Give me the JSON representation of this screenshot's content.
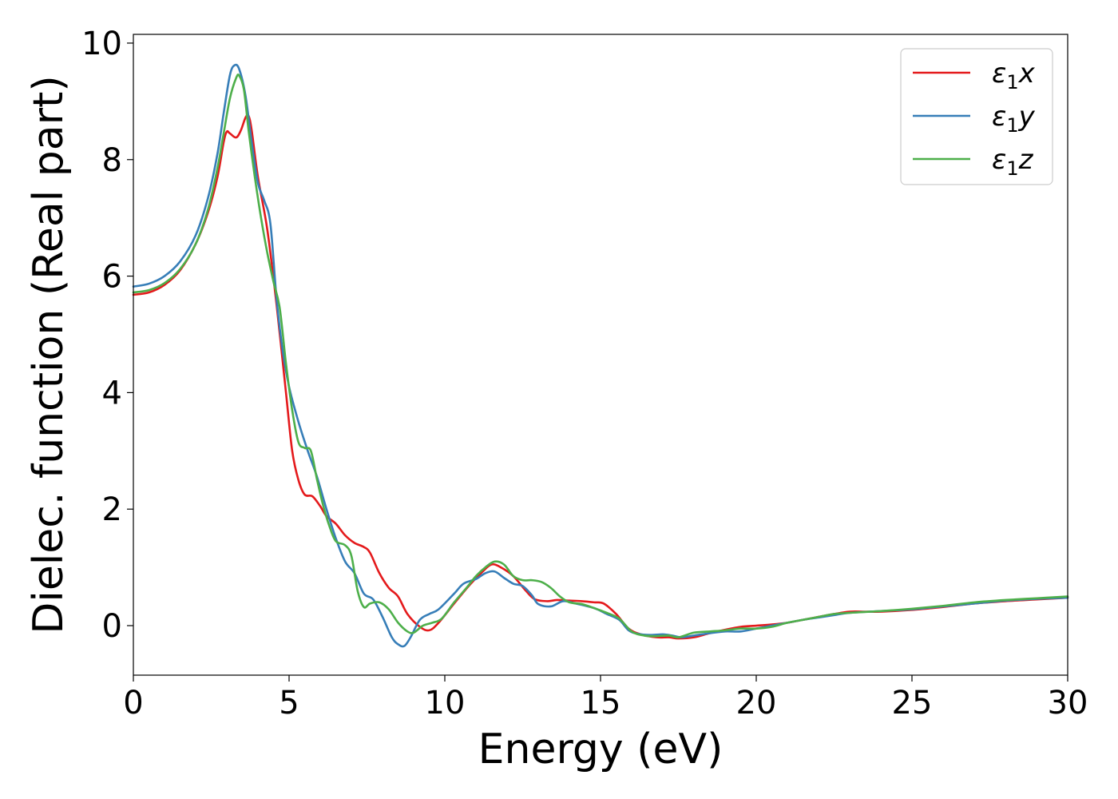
{
  "chart_data": {
    "type": "line",
    "xlabel": "Energy (eV)",
    "ylabel": "Dielec. function (Real part)",
    "xlim": [
      0,
      30
    ],
    "ylim": [
      -0.85,
      10.15
    ],
    "xticks": [
      0,
      5,
      10,
      15,
      20,
      25,
      30
    ],
    "xtick_labels": [
      "0",
      "5",
      "10",
      "15",
      "20",
      "25",
      "30"
    ],
    "yticks": [
      0,
      2,
      4,
      6,
      8,
      10
    ],
    "ytick_labels": [
      "0",
      "2",
      "4",
      "6",
      "8",
      "10"
    ],
    "grid": false,
    "legend_position": "top-right",
    "series": [
      {
        "name": "ε₁x",
        "legend": {
          "symbol": "ε",
          "sub": "1",
          "var": "x"
        },
        "color": "#e41a1c",
        "points": [
          [
            0,
            5.68
          ],
          [
            0.5,
            5.72
          ],
          [
            1.0,
            5.85
          ],
          [
            1.5,
            6.1
          ],
          [
            2.0,
            6.55
          ],
          [
            2.4,
            7.1
          ],
          [
            2.7,
            7.7
          ],
          [
            2.9,
            8.3
          ],
          [
            3.0,
            8.48
          ],
          [
            3.1,
            8.45
          ],
          [
            3.3,
            8.38
          ],
          [
            3.45,
            8.5
          ],
          [
            3.6,
            8.72
          ],
          [
            3.7,
            8.75
          ],
          [
            3.8,
            8.5
          ],
          [
            4.0,
            7.7
          ],
          [
            4.3,
            6.8
          ],
          [
            4.6,
            5.5
          ],
          [
            4.9,
            4.0
          ],
          [
            5.1,
            3.0
          ],
          [
            5.3,
            2.5
          ],
          [
            5.5,
            2.25
          ],
          [
            5.75,
            2.22
          ],
          [
            6.0,
            2.05
          ],
          [
            6.2,
            1.88
          ],
          [
            6.5,
            1.75
          ],
          [
            6.8,
            1.55
          ],
          [
            7.1,
            1.42
          ],
          [
            7.4,
            1.35
          ],
          [
            7.6,
            1.25
          ],
          [
            7.9,
            0.9
          ],
          [
            8.2,
            0.65
          ],
          [
            8.5,
            0.5
          ],
          [
            8.8,
            0.2
          ],
          [
            9.2,
            -0.02
          ],
          [
            9.5,
            -0.08
          ],
          [
            9.8,
            0.05
          ],
          [
            10.3,
            0.38
          ],
          [
            10.8,
            0.7
          ],
          [
            11.2,
            0.92
          ],
          [
            11.5,
            1.05
          ],
          [
            11.8,
            1.0
          ],
          [
            12.2,
            0.85
          ],
          [
            12.6,
            0.6
          ],
          [
            12.9,
            0.45
          ],
          [
            13.3,
            0.42
          ],
          [
            13.6,
            0.44
          ],
          [
            14.0,
            0.43
          ],
          [
            14.4,
            0.42
          ],
          [
            14.8,
            0.4
          ],
          [
            15.1,
            0.38
          ],
          [
            15.5,
            0.2
          ],
          [
            15.9,
            -0.05
          ],
          [
            16.3,
            -0.15
          ],
          [
            16.8,
            -0.2
          ],
          [
            17.2,
            -0.2
          ],
          [
            17.5,
            -0.22
          ],
          [
            18.0,
            -0.2
          ],
          [
            18.5,
            -0.13
          ],
          [
            19.0,
            -0.07
          ],
          [
            19.5,
            -0.02
          ],
          [
            20.0,
            0.0
          ],
          [
            20.5,
            0.02
          ],
          [
            21.0,
            0.05
          ],
          [
            21.5,
            0.1
          ],
          [
            22.0,
            0.15
          ],
          [
            22.5,
            0.2
          ],
          [
            23.0,
            0.24
          ],
          [
            23.5,
            0.24
          ],
          [
            24.0,
            0.24
          ],
          [
            25.0,
            0.27
          ],
          [
            26.0,
            0.32
          ],
          [
            27.0,
            0.38
          ],
          [
            28.0,
            0.42
          ],
          [
            29.0,
            0.45
          ],
          [
            30.0,
            0.48
          ]
        ]
      },
      {
        "name": "ε₁y",
        "legend": {
          "symbol": "ε",
          "sub": "1",
          "var": "y"
        },
        "color": "#377eb8",
        "points": [
          [
            0,
            5.82
          ],
          [
            0.5,
            5.87
          ],
          [
            1.0,
            6.0
          ],
          [
            1.5,
            6.25
          ],
          [
            2.0,
            6.7
          ],
          [
            2.4,
            7.35
          ],
          [
            2.7,
            8.1
          ],
          [
            2.9,
            8.8
          ],
          [
            3.1,
            9.45
          ],
          [
            3.25,
            9.62
          ],
          [
            3.4,
            9.55
          ],
          [
            3.6,
            9.1
          ],
          [
            3.8,
            8.3
          ],
          [
            4.0,
            7.6
          ],
          [
            4.2,
            7.3
          ],
          [
            4.4,
            6.9
          ],
          [
            4.6,
            5.6
          ],
          [
            4.8,
            4.7
          ],
          [
            5.0,
            4.1
          ],
          [
            5.3,
            3.5
          ],
          [
            5.6,
            3.0
          ],
          [
            5.9,
            2.55
          ],
          [
            6.2,
            2.0
          ],
          [
            6.5,
            1.5
          ],
          [
            6.8,
            1.1
          ],
          [
            7.1,
            0.9
          ],
          [
            7.4,
            0.55
          ],
          [
            7.7,
            0.45
          ],
          [
            8.0,
            0.15
          ],
          [
            8.3,
            -0.2
          ],
          [
            8.5,
            -0.32
          ],
          [
            8.7,
            -0.35
          ],
          [
            8.9,
            -0.2
          ],
          [
            9.2,
            0.1
          ],
          [
            9.5,
            0.2
          ],
          [
            9.8,
            0.28
          ],
          [
            10.3,
            0.55
          ],
          [
            10.6,
            0.72
          ],
          [
            11.0,
            0.8
          ],
          [
            11.3,
            0.9
          ],
          [
            11.6,
            0.93
          ],
          [
            11.9,
            0.82
          ],
          [
            12.2,
            0.72
          ],
          [
            12.5,
            0.68
          ],
          [
            12.8,
            0.52
          ],
          [
            13.0,
            0.37
          ],
          [
            13.4,
            0.33
          ],
          [
            13.8,
            0.42
          ],
          [
            14.2,
            0.38
          ],
          [
            14.8,
            0.3
          ],
          [
            15.2,
            0.2
          ],
          [
            15.6,
            0.1
          ],
          [
            15.9,
            -0.08
          ],
          [
            16.2,
            -0.14
          ],
          [
            16.6,
            -0.16
          ],
          [
            17.0,
            -0.15
          ],
          [
            17.3,
            -0.17
          ],
          [
            17.6,
            -0.2
          ],
          [
            18.0,
            -0.17
          ],
          [
            18.5,
            -0.13
          ],
          [
            19.0,
            -0.1
          ],
          [
            19.5,
            -0.1
          ],
          [
            20.0,
            -0.05
          ],
          [
            20.5,
            0.0
          ],
          [
            21.0,
            0.05
          ],
          [
            21.5,
            0.1
          ],
          [
            22.0,
            0.14
          ],
          [
            22.5,
            0.18
          ],
          [
            23.0,
            0.22
          ],
          [
            24.0,
            0.25
          ],
          [
            25.0,
            0.28
          ],
          [
            26.0,
            0.33
          ],
          [
            27.0,
            0.38
          ],
          [
            28.0,
            0.43
          ],
          [
            29.0,
            0.46
          ],
          [
            30.0,
            0.48
          ]
        ]
      },
      {
        "name": "ε₁z",
        "legend": {
          "symbol": "ε",
          "sub": "1",
          "var": "z"
        },
        "color": "#4daf4a",
        "points": [
          [
            0,
            5.72
          ],
          [
            0.5,
            5.76
          ],
          [
            1.0,
            5.88
          ],
          [
            1.5,
            6.12
          ],
          [
            2.0,
            6.55
          ],
          [
            2.4,
            7.15
          ],
          [
            2.7,
            7.85
          ],
          [
            2.9,
            8.45
          ],
          [
            3.1,
            9.05
          ],
          [
            3.3,
            9.4
          ],
          [
            3.4,
            9.44
          ],
          [
            3.55,
            9.2
          ],
          [
            3.7,
            8.5
          ],
          [
            3.9,
            7.7
          ],
          [
            4.1,
            7.0
          ],
          [
            4.3,
            6.4
          ],
          [
            4.5,
            5.9
          ],
          [
            4.7,
            5.45
          ],
          [
            4.9,
            4.5
          ],
          [
            5.1,
            3.7
          ],
          [
            5.3,
            3.15
          ],
          [
            5.5,
            3.05
          ],
          [
            5.7,
            3.0
          ],
          [
            5.9,
            2.5
          ],
          [
            6.1,
            2.05
          ],
          [
            6.3,
            1.7
          ],
          [
            6.5,
            1.45
          ],
          [
            6.8,
            1.38
          ],
          [
            7.0,
            1.2
          ],
          [
            7.2,
            0.6
          ],
          [
            7.4,
            0.32
          ],
          [
            7.6,
            0.38
          ],
          [
            7.9,
            0.4
          ],
          [
            8.2,
            0.28
          ],
          [
            8.5,
            0.05
          ],
          [
            8.8,
            -0.1
          ],
          [
            9.0,
            -0.12
          ],
          [
            9.3,
            0.0
          ],
          [
            9.6,
            0.05
          ],
          [
            9.9,
            0.12
          ],
          [
            10.3,
            0.4
          ],
          [
            10.7,
            0.65
          ],
          [
            11.0,
            0.85
          ],
          [
            11.3,
            1.0
          ],
          [
            11.6,
            1.1
          ],
          [
            11.9,
            1.05
          ],
          [
            12.2,
            0.85
          ],
          [
            12.5,
            0.78
          ],
          [
            12.8,
            0.78
          ],
          [
            13.1,
            0.75
          ],
          [
            13.4,
            0.65
          ],
          [
            13.7,
            0.5
          ],
          [
            14.0,
            0.4
          ],
          [
            14.4,
            0.37
          ],
          [
            14.8,
            0.3
          ],
          [
            15.2,
            0.22
          ],
          [
            15.6,
            0.12
          ],
          [
            16.0,
            -0.1
          ],
          [
            16.4,
            -0.17
          ],
          [
            16.8,
            -0.18
          ],
          [
            17.2,
            -0.17
          ],
          [
            17.5,
            -0.2
          ],
          [
            18.0,
            -0.12
          ],
          [
            18.5,
            -0.1
          ],
          [
            19.0,
            -0.08
          ],
          [
            19.5,
            -0.05
          ],
          [
            20.0,
            -0.05
          ],
          [
            20.5,
            -0.02
          ],
          [
            21.0,
            0.05
          ],
          [
            21.5,
            0.1
          ],
          [
            22.0,
            0.15
          ],
          [
            22.5,
            0.2
          ],
          [
            23.0,
            0.22
          ],
          [
            24.0,
            0.25
          ],
          [
            25.0,
            0.29
          ],
          [
            26.0,
            0.34
          ],
          [
            27.0,
            0.4
          ],
          [
            28.0,
            0.44
          ],
          [
            29.0,
            0.47
          ],
          [
            30.0,
            0.5
          ]
        ]
      }
    ]
  }
}
